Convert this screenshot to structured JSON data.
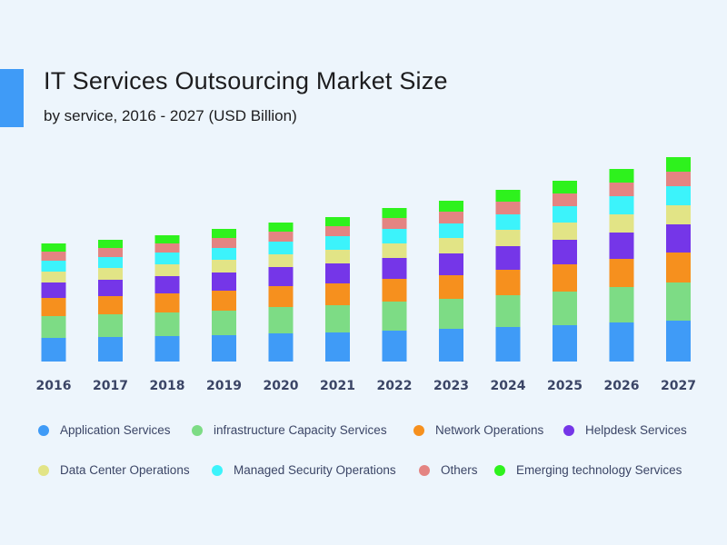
{
  "header": {
    "title": "IT Services Outsourcing Market Size",
    "subtitle": "by service, 2016 - 2027 (USD Billion)"
  },
  "colors": {
    "accent": "#3f9bf7",
    "background": "#edf5fc"
  },
  "chart_data": {
    "type": "bar",
    "stacked": true,
    "title": "IT Services Outsourcing Market Size",
    "subtitle": "by service, 2016 - 2027 (USD Billion)",
    "xlabel": "",
    "ylabel": "",
    "grid": false,
    "legend_position": "bottom",
    "categories": [
      "2016",
      "2017",
      "2018",
      "2019",
      "2020",
      "2021",
      "2022",
      "2023",
      "2024",
      "2025",
      "2026",
      "2027"
    ],
    "series": [
      {
        "name": "Application Services",
        "color": "#3f9bf7",
        "values": [
          26,
          27,
          28,
          29,
          31,
          32,
          34,
          36,
          38,
          40,
          43,
          45
        ]
      },
      {
        "name": "infrastructure Capacity Services",
        "color": "#7ddc85",
        "values": [
          24,
          25,
          26,
          27,
          29,
          30,
          32,
          33,
          35,
          37,
          39,
          42
        ]
      },
      {
        "name": "Network Operations",
        "color": "#f6901e",
        "values": [
          20,
          20,
          21,
          22,
          23,
          24,
          25,
          26,
          28,
          30,
          31,
          33
        ]
      },
      {
        "name": "Helpdesk Services",
        "color": "#7536e8",
        "values": [
          17,
          18,
          19,
          20,
          21,
          22,
          23,
          24,
          26,
          27,
          29,
          31
        ]
      },
      {
        "name": "Data Center Operations",
        "color": "#e2e486",
        "values": [
          12,
          13,
          13,
          14,
          14,
          15,
          16,
          17,
          18,
          19,
          20,
          21
        ]
      },
      {
        "name": "Managed Security Operations",
        "color": "#3cf3fb",
        "values": [
          12,
          12,
          13,
          13,
          14,
          15,
          16,
          16,
          17,
          18,
          20,
          21
        ]
      },
      {
        "name": "Others",
        "color": "#e48482",
        "values": [
          10,
          10,
          10,
          11,
          11,
          11,
          12,
          13,
          14,
          14,
          15,
          16
        ]
      },
      {
        "name": "Emerging technology Services",
        "color": "#2ef21d",
        "values": [
          9,
          9,
          9,
          10,
          10,
          10,
          11,
          12,
          13,
          14,
          15,
          16
        ]
      }
    ]
  }
}
